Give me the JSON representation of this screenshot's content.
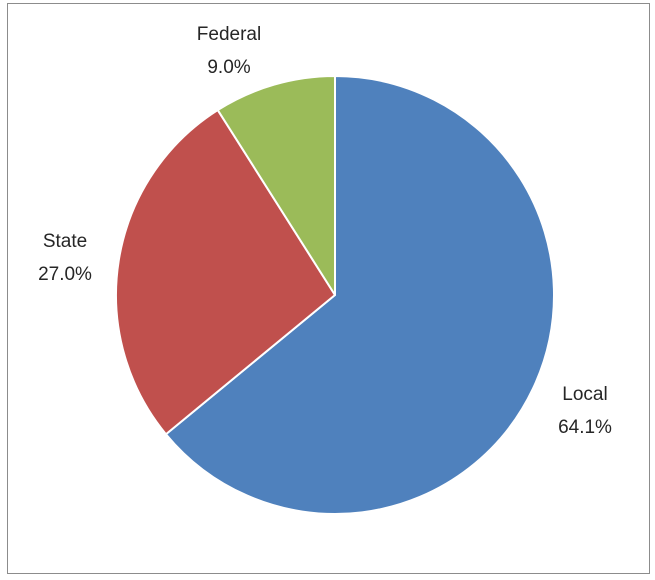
{
  "chart_data": {
    "type": "pie",
    "title": "",
    "slices": [
      {
        "label": "Local",
        "value": 64.1,
        "display": "64.1%",
        "color": "#4f81bd"
      },
      {
        "label": "State",
        "value": 27.0,
        "display": "27.0%",
        "color": "#c0504d"
      },
      {
        "label": "Federal",
        "value": 9.0,
        "display": "9.0%",
        "color": "#9bbb59"
      }
    ],
    "legend": "none",
    "start_angle": "12 o'clock",
    "direction": "clockwise"
  }
}
